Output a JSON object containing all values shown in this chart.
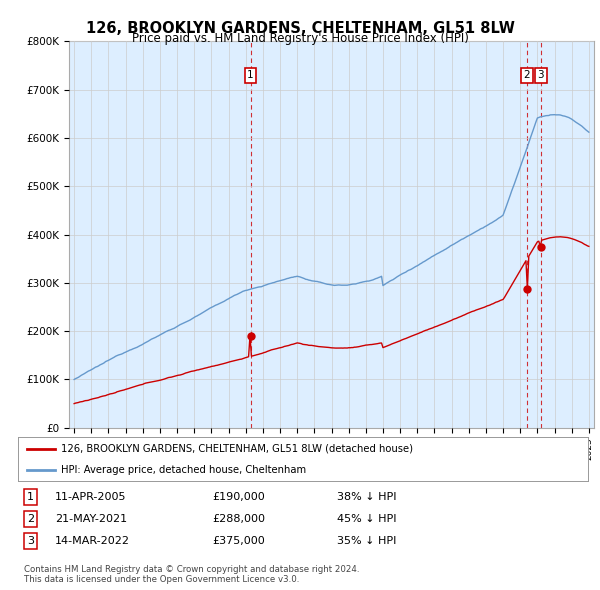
{
  "title": "126, BROOKLYN GARDENS, CHELTENHAM, GL51 8LW",
  "subtitle": "Price paid vs. HM Land Registry's House Price Index (HPI)",
  "hpi_label": "HPI: Average price, detached house, Cheltenham",
  "property_label": "126, BROOKLYN GARDENS, CHELTENHAM, GL51 8LW (detached house)",
  "footnote1": "Contains HM Land Registry data © Crown copyright and database right 2024.",
  "footnote2": "This data is licensed under the Open Government Licence v3.0.",
  "ylim": [
    0,
    800000
  ],
  "yticks": [
    0,
    100000,
    200000,
    300000,
    400000,
    500000,
    600000,
    700000,
    800000
  ],
  "ytick_labels": [
    "£0",
    "£100K",
    "£200K",
    "£300K",
    "£400K",
    "£500K",
    "£600K",
    "£700K",
    "£800K"
  ],
  "transactions": [
    {
      "num": 1,
      "date": "11-APR-2005",
      "price": 190000,
      "hpi_pct": "38% ↓ HPI",
      "x": 2005.28
    },
    {
      "num": 2,
      "date": "21-MAY-2021",
      "price": 288000,
      "hpi_pct": "45% ↓ HPI",
      "x": 2021.38
    },
    {
      "num": 3,
      "date": "14-MAR-2022",
      "price": 375000,
      "hpi_pct": "35% ↓ HPI",
      "x": 2022.2
    }
  ],
  "vline_color": "#cc0000",
  "property_color": "#cc0000",
  "hpi_color": "#6699cc",
  "hpi_fill_color": "#ddeeff",
  "background_color": "#ffffff",
  "grid_color": "#cccccc",
  "xstart": 1995,
  "xend": 2025
}
